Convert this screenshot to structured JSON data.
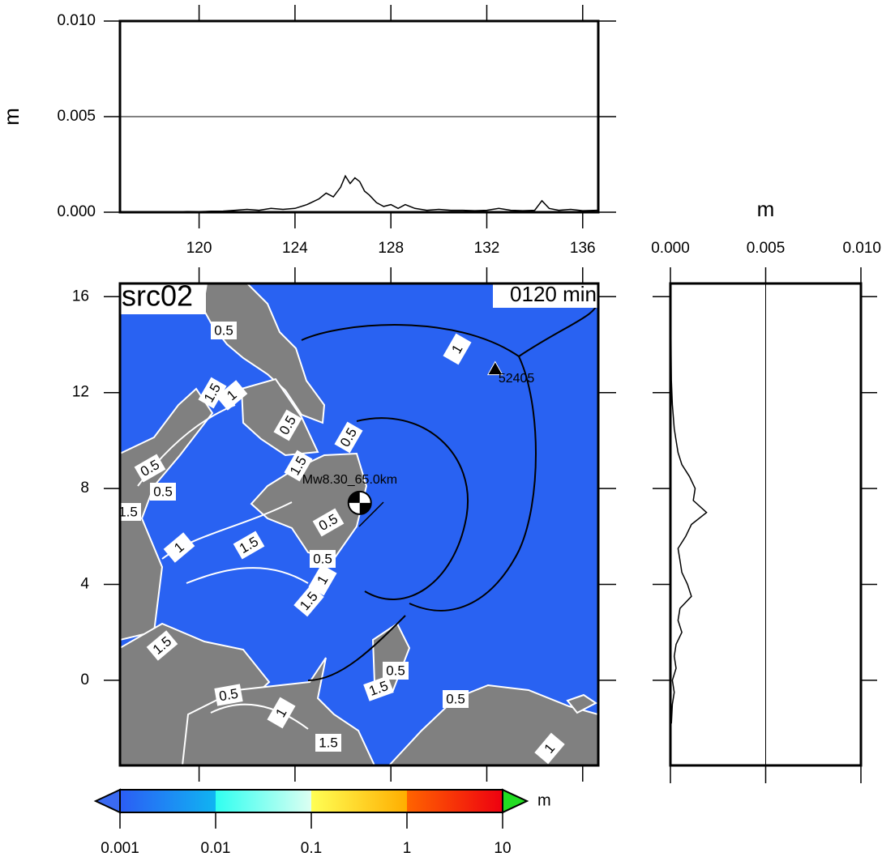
{
  "chart_data": [
    {
      "type": "line",
      "axis_label": "m",
      "color": "#000000",
      "grid": true,
      "xlim": [
        116.7,
        136.65
      ],
      "ylim": [
        0,
        0.01
      ],
      "xticks": [
        120,
        124,
        128,
        132,
        136
      ],
      "yticks": [
        {
          "value": 0,
          "label": "0.000"
        },
        {
          "value": 0.005,
          "label": "0.005"
        },
        {
          "value": 0.01,
          "label": "0.010"
        }
      ],
      "x": [
        117.8,
        118.5,
        119,
        119.5,
        120,
        120.5,
        121,
        121.5,
        122,
        122.5,
        123,
        123.5,
        124,
        124.5,
        125,
        125.3,
        125.6,
        125.9,
        126.1,
        126.3,
        126.5,
        126.7,
        126.9,
        127.1,
        127.4,
        127.7,
        128,
        128.3,
        128.6,
        129,
        129.5,
        130,
        130.5,
        131,
        131.5,
        132,
        132.5,
        133,
        133.5,
        134,
        134.3,
        134.6,
        135,
        135.5,
        136,
        136.6
      ],
      "values": [
        0,
        3e-05,
        2e-05,
        4e-05,
        3e-05,
        5e-05,
        6e-05,
        0.0001,
        0.00015,
        0.0001,
        0.0002,
        0.00015,
        0.0002,
        0.0004,
        0.0007,
        0.001,
        0.0008,
        0.0013,
        0.0019,
        0.0015,
        0.0018,
        0.0016,
        0.0011,
        0.0009,
        0.0005,
        0.0003,
        0.0004,
        0.0002,
        0.0004,
        0.0002,
        0.0001,
        0.00015,
        0.0001,
        0.0001,
        8e-05,
        0.0001,
        0.0002,
        0.0001,
        8e-05,
        0.0001,
        0.0006,
        0.0002,
        0.0001,
        0.00015,
        8e-05,
        0.0001
      ]
    },
    {
      "type": "map",
      "title": "src02",
      "subtitle": "0120 min",
      "xlim": [
        116.7,
        136.65
      ],
      "ylim": [
        -3.55,
        16.55
      ],
      "yticks": [
        0,
        4,
        8,
        12,
        16
      ],
      "sea_color": "#2962f2",
      "land_color": "#808080",
      "contour_labels": [
        "0.5",
        "1.5",
        "1",
        "0.5",
        "0.5",
        "1.5",
        "0.5",
        "0.5",
        "1.5",
        "1",
        "1.5",
        "0.5",
        "0.5",
        "1",
        "1.5",
        "1.5",
        "0.5",
        "1.5",
        "0.5",
        "1",
        "1.5",
        "0.5",
        "1",
        "1"
      ],
      "annotations": [
        {
          "label": "Mw8.30_65.0km",
          "x": 126.7,
          "y": 7.4
        },
        {
          "label": "52405",
          "x": 132.35,
          "y": 12.95
        }
      ]
    },
    {
      "type": "profile",
      "axis_label": "m",
      "color": "#000000",
      "grid": true,
      "xlim": [
        0,
        0.01
      ],
      "ylim": [
        -3.55,
        16.55
      ],
      "xticks": [
        {
          "value": 0,
          "label": "0.000"
        },
        {
          "value": 0.005,
          "label": "0.005"
        },
        {
          "value": 0.01,
          "label": "0.010"
        }
      ],
      "y": [
        15.3,
        14.5,
        13.5,
        12.5,
        11.5,
        10.5,
        10,
        9.5,
        9,
        8.5,
        8,
        7.5,
        7,
        6.5,
        6,
        5.5,
        5,
        4.5,
        4,
        3.5,
        3,
        2.5,
        2,
        1.5,
        1,
        0.5,
        0,
        -0.5,
        -1,
        -1.8
      ],
      "values": [
        2e-05,
        3e-05,
        4e-05,
        5e-05,
        0.0001,
        0.0002,
        0.0003,
        0.0004,
        0.0006,
        0.001,
        0.0013,
        0.0012,
        0.0019,
        0.0011,
        0.0008,
        0.0004,
        0.0005,
        0.0006,
        0.0009,
        0.0011,
        0.0005,
        0.0004,
        0.0006,
        0.0003,
        0.0002,
        0.0003,
        0.0001,
        0.0002,
        0.0001,
        5e-05
      ]
    },
    {
      "type": "colorbar",
      "unit": "m",
      "scale": "log",
      "xlim": [
        0.001,
        10
      ],
      "xticks": [
        0.001,
        0.01,
        0.1,
        1,
        10
      ],
      "colors": [
        "#2b5df5",
        "#10b4f2",
        "#30fff0",
        "#dcfff2",
        "#ffff55",
        "#ffae00",
        "#ff6400",
        "#ee0010"
      ],
      "under_color": "#3a6af2",
      "over_color": "#22dd22"
    }
  ]
}
